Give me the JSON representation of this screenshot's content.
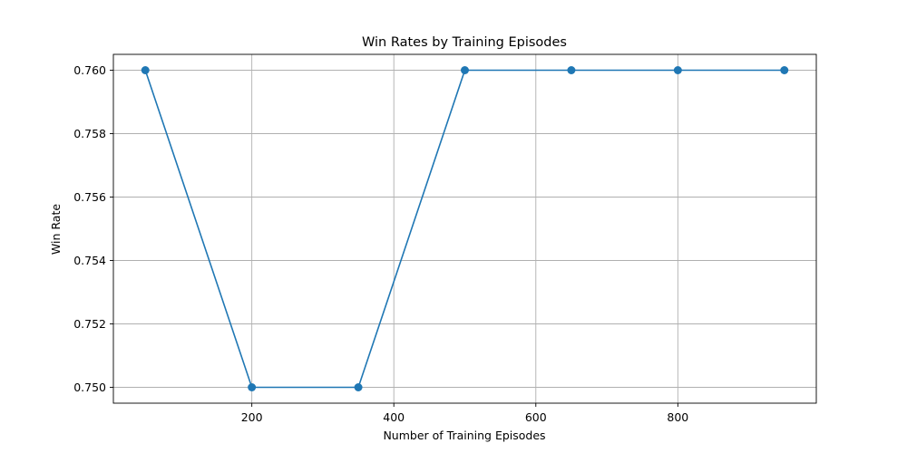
{
  "chart_data": {
    "type": "line",
    "title": "Win Rates by Training Episodes",
    "xlabel": "Number of Training Episodes",
    "ylabel": "Win Rate",
    "x": [
      50,
      200,
      350,
      500,
      650,
      800,
      950
    ],
    "series": [
      {
        "values": [
          0.76,
          0.75,
          0.75,
          0.76,
          0.76,
          0.76,
          0.76
        ],
        "color": "#1f77b4",
        "marker": "circle"
      }
    ],
    "xlim": [
      5,
      995
    ],
    "ylim": [
      0.7495,
      0.7605
    ],
    "xticks": [
      200,
      400,
      600,
      800
    ],
    "xtick_labels": [
      "200",
      "400",
      "600",
      "800"
    ],
    "yticks": [
      0.75,
      0.752,
      0.754,
      0.756,
      0.758,
      0.76
    ],
    "ytick_labels": [
      "0.750",
      "0.752",
      "0.754",
      "0.756",
      "0.758",
      "0.760"
    ],
    "grid": true
  }
}
